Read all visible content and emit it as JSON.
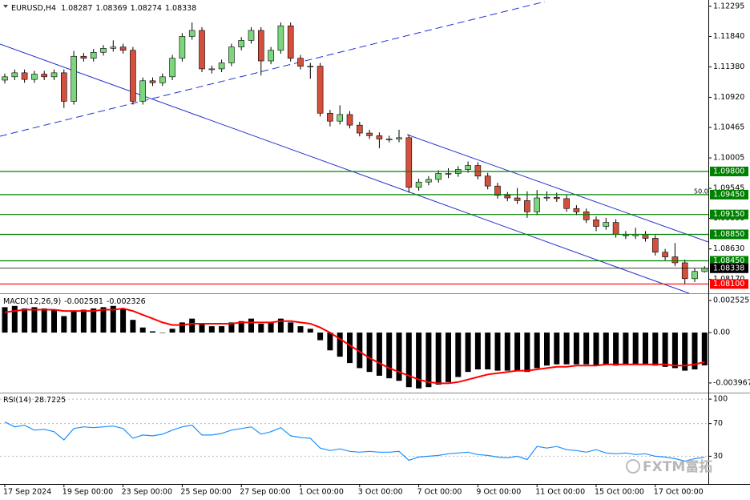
{
  "chart_data": [
    {
      "type": "candlestick",
      "title": "EURUSD,H4",
      "categories": [
        "17 Sep 2024",
        null,
        null,
        null,
        null,
        null,
        "19 Sep 00:00",
        null,
        null,
        null,
        null,
        null,
        "23 Sep 00:00",
        null,
        null,
        null,
        null,
        null,
        "25 Sep 00:00",
        null,
        null,
        null,
        null,
        null,
        "27 Sep 00:00",
        null,
        null,
        null,
        null,
        null,
        "1 Oct 00:00",
        null,
        null,
        null,
        null,
        null,
        "3 Oct 00:00",
        null,
        null,
        null,
        null,
        null,
        "7 Oct 00:00",
        null,
        null,
        null,
        null,
        null,
        "9 Oct 00:00",
        null,
        null,
        null,
        null,
        null,
        "11 Oct 00:00",
        null,
        null,
        null,
        null,
        null,
        "15 Oct 00:00",
        null,
        null,
        null,
        null,
        null,
        "17 Oct 00:00",
        null,
        null,
        null,
        null,
        null
      ],
      "ohlc": [
        [
          1.1118,
          1.1128,
          1.1113,
          1.1123
        ],
        [
          1.1123,
          1.1134,
          1.1118,
          1.1129
        ],
        [
          1.1129,
          1.1134,
          1.1114,
          1.1119
        ],
        [
          1.1119,
          1.1132,
          1.1114,
          1.1127
        ],
        [
          1.1127,
          1.1132,
          1.1118,
          1.1123
        ],
        [
          1.1123,
          1.1134,
          1.1118,
          1.1129
        ],
        [
          1.1129,
          1.1134,
          1.1076,
          1.1086
        ],
        [
          1.1086,
          1.1162,
          1.1081,
          1.1154
        ],
        [
          1.1154,
          1.1159,
          1.1146,
          1.1151
        ],
        [
          1.1151,
          1.1165,
          1.1146,
          1.116
        ],
        [
          1.116,
          1.1171,
          1.1155,
          1.1166
        ],
        [
          1.1166,
          1.1178,
          1.1161,
          1.1168
        ],
        [
          1.1168,
          1.1173,
          1.1158,
          1.1163
        ],
        [
          1.1163,
          1.1168,
          1.1081,
          1.1086
        ],
        [
          1.1086,
          1.1122,
          1.1081,
          1.1117
        ],
        [
          1.1117,
          1.1122,
          1.1109,
          1.1114
        ],
        [
          1.1114,
          1.1128,
          1.1109,
          1.1123
        ],
        [
          1.1123,
          1.1156,
          1.1118,
          1.1151
        ],
        [
          1.1151,
          1.1189,
          1.1146,
          1.1184
        ],
        [
          1.1184,
          1.1205,
          1.1179,
          1.1193
        ],
        [
          1.1193,
          1.1198,
          1.113,
          1.1135
        ],
        [
          1.1135,
          1.114,
          1.1128,
          1.1135
        ],
        [
          1.1135,
          1.1149,
          1.113,
          1.1144
        ],
        [
          1.1144,
          1.1173,
          1.1139,
          1.1168
        ],
        [
          1.1168,
          1.1183,
          1.1163,
          1.1178
        ],
        [
          1.1178,
          1.1198,
          1.1173,
          1.1193
        ],
        [
          1.1193,
          1.1198,
          1.1125,
          1.1147
        ],
        [
          1.1147,
          1.1168,
          1.1142,
          1.1163
        ],
        [
          1.1163,
          1.1205,
          1.1158,
          1.12
        ],
        [
          1.12,
          1.1205,
          1.1146,
          1.1151
        ],
        [
          1.1151,
          1.1156,
          1.1134,
          1.1139
        ],
        [
          1.1139,
          1.1144,
          1.112,
          1.1139
        ],
        [
          1.1139,
          1.1144,
          1.1063,
          1.1068
        ],
        [
          1.1068,
          1.1073,
          1.1048,
          1.1056
        ],
        [
          1.1056,
          1.108,
          1.1051,
          1.1066
        ],
        [
          1.1066,
          1.1071,
          1.1045,
          1.105
        ],
        [
          1.105,
          1.1055,
          1.1033,
          1.1038
        ],
        [
          1.1038,
          1.1043,
          1.1029,
          1.1034
        ],
        [
          1.1034,
          1.1039,
          1.1015,
          1.1029
        ],
        [
          1.1029,
          1.1034,
          1.1024,
          1.1029
        ],
        [
          1.1029,
          1.1043,
          1.1024,
          1.1031
        ],
        [
          1.1031,
          1.1036,
          1.0948,
          1.0956
        ],
        [
          1.0956,
          1.0969,
          1.0951,
          1.0964
        ],
        [
          1.0964,
          1.0973,
          1.0959,
          1.0968
        ],
        [
          1.0968,
          1.0982,
          1.0963,
          1.0977
        ],
        [
          1.0977,
          1.0985,
          1.097,
          1.0977
        ],
        [
          1.0977,
          1.0988,
          1.0972,
          1.0983
        ],
        [
          1.0983,
          1.0995,
          1.0978,
          1.0989
        ],
        [
          1.0989,
          1.0994,
          1.0968,
          1.0973
        ],
        [
          1.0973,
          1.0978,
          1.0953,
          1.0958
        ],
        [
          1.0958,
          1.0963,
          1.0939,
          1.0944
        ],
        [
          1.0944,
          1.0949,
          1.0935,
          1.094
        ],
        [
          1.094,
          1.0955,
          1.0931,
          1.0936
        ],
        [
          1.0936,
          1.095,
          1.091,
          1.0919
        ],
        [
          1.0919,
          1.0952,
          1.0914,
          1.094
        ],
        [
          1.094,
          1.095,
          1.0935,
          1.0941
        ],
        [
          1.0941,
          1.0948,
          1.0934,
          1.0939
        ],
        [
          1.0939,
          1.0944,
          1.0919,
          1.0924
        ],
        [
          1.0924,
          1.0929,
          1.0914,
          1.0919
        ],
        [
          1.0919,
          1.0924,
          1.0902,
          1.0907
        ],
        [
          1.0907,
          1.0912,
          1.089,
          1.0897
        ],
        [
          1.0897,
          1.091,
          1.0892,
          1.0903
        ],
        [
          1.0903,
          1.0908,
          1.088,
          1.0885
        ],
        [
          1.0885,
          1.089,
          1.0878,
          1.0883
        ],
        [
          1.0883,
          1.0895,
          1.0878,
          1.0885
        ],
        [
          1.0885,
          1.089,
          1.0874,
          1.0879
        ],
        [
          1.0879,
          1.0884,
          1.0853,
          1.0858
        ],
        [
          1.0858,
          1.0863,
          1.0846,
          1.0851
        ],
        [
          1.0851,
          1.0872,
          1.0837,
          1.0842
        ],
        [
          1.0842,
          1.0847,
          1.081,
          1.0818
        ],
        [
          1.0818,
          1.0834,
          1.0813,
          1.0829
        ],
        [
          1.08287,
          1.08369,
          1.08274,
          1.08338
        ]
      ],
      "up_color": "#7cd67c",
      "down_color": "#d4503c",
      "ylim": [
        1.0796,
        1.1239
      ],
      "yticks": [
        1.12295,
        {
          "value": 1.1184,
          "label": "1.11840"
        },
        {
          "value": 1.1138,
          "label": "1.11380"
        },
        {
          "value": 1.1092,
          "label": "1.10920"
        },
        1.10465,
        1.10005,
        1.09545,
        {
          "value": 1.0909,
          "label": "1.09090"
        },
        {
          "value": 1.0863,
          "label": "1.08630"
        },
        {
          "value": 1.0817,
          "label": "1.08170"
        }
      ],
      "levels": [
        {
          "value": 1.098,
          "label": "1.09800",
          "color": "#008000"
        },
        {
          "value": 1.0945,
          "label": "1.09450",
          "color": "#008000"
        },
        {
          "value": 1.0915,
          "label": "1.09150",
          "color": "#008000"
        },
        {
          "value": 1.0885,
          "label": "1.08850",
          "color": "#008000"
        },
        {
          "value": 1.0845,
          "label": "1.08450",
          "color": "#008000"
        },
        {
          "value": 1.081,
          "label": "1.08100",
          "color": "#ff0000"
        }
      ],
      "annotation": "50.0"
    },
    {
      "type": "bar",
      "title": "MACD(12,26,9)",
      "color": "#000000",
      "values": [
        0.002,
        0.0021,
        0.0019,
        0.002,
        0.0019,
        0.0018,
        0.0013,
        0.0017,
        0.0018,
        0.0019,
        0.002,
        0.0021,
        0.0019,
        0.001,
        0.0004,
        0.0001,
        0.0,
        0.0003,
        0.0008,
        0.0011,
        0.0007,
        0.0005,
        0.0005,
        0.0008,
        0.0009,
        0.0011,
        0.0007,
        0.0008,
        0.0011,
        0.0008,
        0.0005,
        0.0003,
        -0.0006,
        -0.0014,
        -0.0019,
        -0.0024,
        -0.0028,
        -0.0031,
        -0.0034,
        -0.0036,
        -0.0038,
        -0.0043,
        -0.0044,
        -0.0043,
        -0.0041,
        -0.0039,
        -0.0035,
        -0.0031,
        -0.0029,
        -0.0029,
        -0.003,
        -0.003,
        -0.003,
        -0.0031,
        -0.0028,
        -0.0026,
        -0.0025,
        -0.0025,
        -0.0025,
        -0.0025,
        -0.0026,
        -0.0025,
        -0.0026,
        -0.0025,
        -0.0025,
        -0.0025,
        -0.0026,
        -0.0027,
        -0.0028,
        -0.003,
        -0.0029,
        -0.002581
      ],
      "signal": {
        "color": "#ff0000",
        "values": [
          0.0016,
          0.0017,
          0.0018,
          0.0018,
          0.0018,
          0.0018,
          0.0017,
          0.0017,
          0.0017,
          0.0017,
          0.0018,
          0.0018,
          0.0019,
          0.0017,
          0.0014,
          0.0011,
          0.0008,
          0.0006,
          0.0006,
          0.0007,
          0.0007,
          0.0007,
          0.0007,
          0.0007,
          0.0008,
          0.0008,
          0.0008,
          0.0008,
          0.0009,
          0.0009,
          0.0008,
          0.0007,
          0.0004,
          0.0,
          -0.0005,
          -0.001,
          -0.0015,
          -0.002,
          -0.0024,
          -0.0028,
          -0.0031,
          -0.0034,
          -0.0037,
          -0.0039,
          -0.004,
          -0.004,
          -0.0039,
          -0.0037,
          -0.0035,
          -0.0033,
          -0.0032,
          -0.0031,
          -0.003,
          -0.003,
          -0.0029,
          -0.0028,
          -0.0027,
          -0.0027,
          -0.0026,
          -0.0026,
          -0.0026,
          -0.0025,
          -0.0025,
          -0.0025,
          -0.0025,
          -0.0025,
          -0.0025,
          -0.0025,
          -0.0026,
          -0.0026,
          -0.0025,
          -0.002326
        ]
      },
      "ylim": [
        -0.00473,
        0.00297
      ],
      "yticks": [
        0.002525,
        {
          "value": 0,
          "label": "0.00"
        },
        -0.003967
      ]
    },
    {
      "type": "line",
      "title": "RSI(14)",
      "color": "#1e90ff",
      "values": [
        72,
        66,
        68,
        62,
        63,
        60,
        50,
        64,
        66,
        65,
        66,
        67,
        64,
        52,
        56,
        55,
        57,
        62,
        66,
        68,
        56,
        56,
        58,
        62,
        64,
        66,
        57,
        60,
        65,
        55,
        53,
        52,
        40,
        37,
        39,
        36,
        35,
        36,
        35,
        35,
        36,
        25,
        29,
        30,
        31,
        33,
        34,
        35,
        32,
        31,
        29,
        28,
        30,
        26,
        42,
        40,
        42,
        38,
        37,
        35,
        38,
        34,
        33,
        34,
        32,
        33,
        30,
        29,
        27,
        24,
        27,
        28.7225
      ],
      "ylim": [
        -4,
        106
      ],
      "yticks": [
        100,
        70,
        30
      ]
    }
  ],
  "watermark": "FXTM富拓"
}
